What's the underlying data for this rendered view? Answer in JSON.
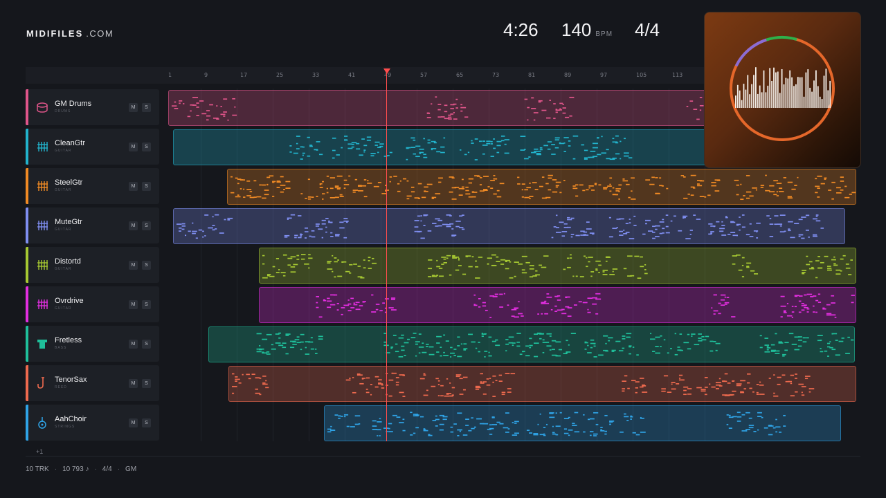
{
  "brand": {
    "name": "MIDIFILES",
    "domain": ".COM"
  },
  "transport": {
    "time": "4:26",
    "tempo": "140",
    "tempo_unit": "BPM",
    "meter": "4/4"
  },
  "ruler": {
    "bars": [
      "1",
      "9",
      "17",
      "25",
      "33",
      "41",
      "49",
      "57",
      "65",
      "73",
      "81",
      "89",
      "97",
      "105",
      "113"
    ]
  },
  "tracks": [
    {
      "name": "GM Drums",
      "category": "DRUMS",
      "color": "#e0558a",
      "icon": "drum-icon",
      "mute": "M",
      "solo": "S"
    },
    {
      "name": "CleanGtr",
      "category": "GUITAR",
      "color": "#22b3cc",
      "icon": "guitar-icon",
      "mute": "M",
      "solo": "S"
    },
    {
      "name": "SteelGtr",
      "category": "GUITAR",
      "color": "#f08a24",
      "icon": "guitar-icon",
      "mute": "M",
      "solo": "S"
    },
    {
      "name": "MuteGtr",
      "category": "GUITAR",
      "color": "#7f8ef0",
      "icon": "guitar-icon",
      "mute": "M",
      "solo": "S"
    },
    {
      "name": "Distortd",
      "category": "GUITAR",
      "color": "#a6c832",
      "icon": "guitar-icon",
      "mute": "M",
      "solo": "S"
    },
    {
      "name": "Ovrdrive",
      "category": "GUITAR",
      "color": "#e22ee0",
      "icon": "guitar-icon",
      "mute": "M",
      "solo": "S"
    },
    {
      "name": "Fretless",
      "category": "BASS",
      "color": "#1fbf9a",
      "icon": "bass-icon",
      "mute": "M",
      "solo": "S"
    },
    {
      "name": "TenorSax",
      "category": "REED",
      "color": "#ee6a4e",
      "icon": "sax-icon",
      "mute": "M",
      "solo": "S"
    },
    {
      "name": "AahChoir",
      "category": "STRINGS",
      "color": "#2fa3e6",
      "icon": "choir-icon",
      "mute": "M",
      "solo": "S"
    }
  ],
  "more_tracks": "+1",
  "footer": {
    "tracks": "10 TRK",
    "notes": "10 793 ♪",
    "meter": "4/4",
    "standard": "GM"
  },
  "visualizer": {
    "ring_colors": [
      "#e5672a",
      "#8a6cd4",
      "#2eb04a"
    ]
  }
}
